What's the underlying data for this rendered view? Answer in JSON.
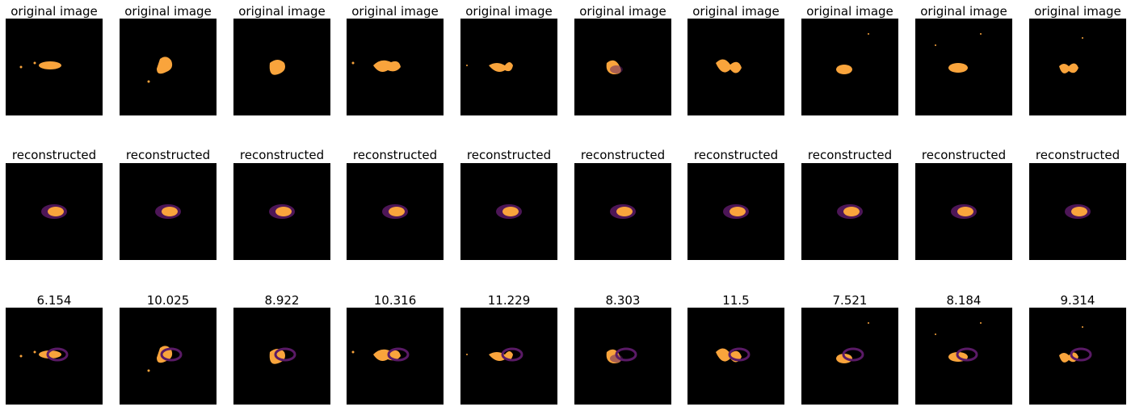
{
  "figure": {
    "background": "#ffffff",
    "panel_color": "#000000",
    "blob_color": "#f9a43c",
    "halo_color": "#5a1a66",
    "row_titles": {
      "original": "original image",
      "reconstructed": "reconstructed"
    },
    "scores": [
      "6.154",
      "10.025",
      "8.922",
      "10.316",
      "11.229",
      "8.303",
      "11.5",
      "7.521",
      "8.184",
      "9.314"
    ]
  }
}
